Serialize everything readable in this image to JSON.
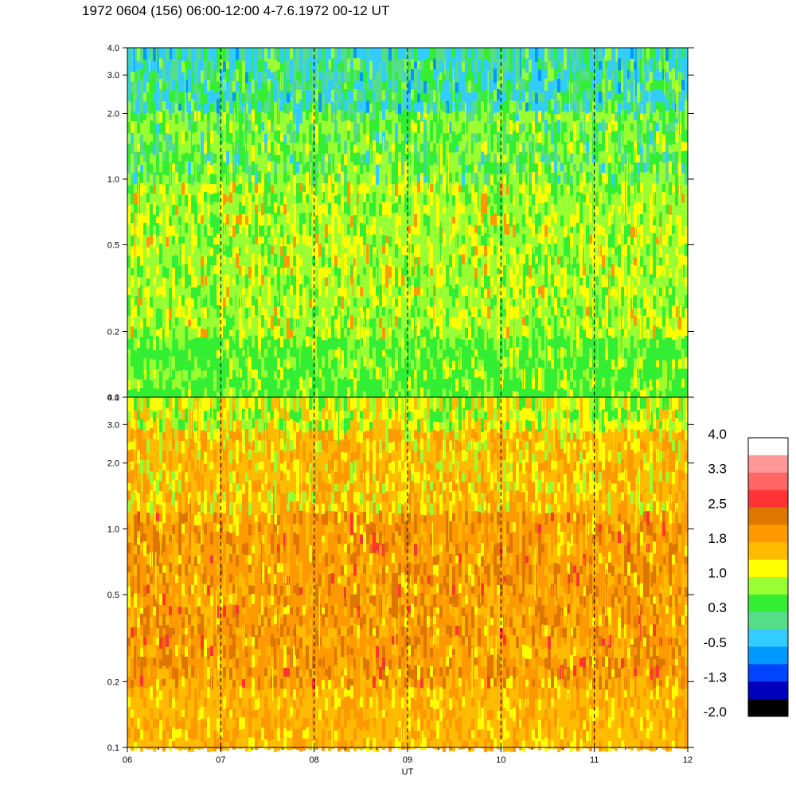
{
  "title": "1972 0604 (156) 06:00-12:00 4-7.6.1972  00-12 UT",
  "chart_data": {
    "type": "heatmap",
    "x_label": "UT",
    "x_ticks": [
      "06",
      "07",
      "08",
      "09",
      "10",
      "11",
      "12"
    ],
    "x_range": [
      6,
      12
    ],
    "y_scale": "log",
    "panels": [
      {
        "name": "upper",
        "y_range": [
          0.1,
          4.0
        ],
        "y_ticks": [
          "0.1",
          "0.2",
          "0.5",
          "1.0",
          "2.0",
          "3.0",
          "4.0"
        ],
        "dominant_colors": [
          "#ffff00",
          "#99ff33",
          "#33ee33",
          "#55dd88",
          "#33ccff"
        ]
      },
      {
        "name": "lower",
        "y_range": [
          0.1,
          4.0
        ],
        "y_ticks": [
          "0.1",
          "0.2",
          "0.5",
          "1.0",
          "2.0",
          "3.0",
          "4.0"
        ],
        "dominant_colors": [
          "#ffbb00",
          "#ff9900",
          "#dd7700",
          "#ffff00",
          "#ff3333"
        ]
      }
    ],
    "dashed_vertical_lines_at_hours": [
      7,
      8,
      9,
      10,
      11
    ],
    "colorbar": {
      "range": [
        -2.0,
        4.0
      ],
      "tick_labels": [
        "4.0",
        "3.3",
        "2.5",
        "1.8",
        "1.0",
        "0.3",
        "-0.5",
        "-1.3",
        "-2.0"
      ],
      "colors_top_to_bottom": [
        "#ffffff",
        "#ff9999",
        "#ff6666",
        "#ff3333",
        "#dd7700",
        "#ff9900",
        "#ffbb00",
        "#ffff00",
        "#99ff33",
        "#33ee33",
        "#55dd88",
        "#33ccff",
        "#0099ff",
        "#0044ff",
        "#0000bb",
        "#000000"
      ]
    }
  }
}
